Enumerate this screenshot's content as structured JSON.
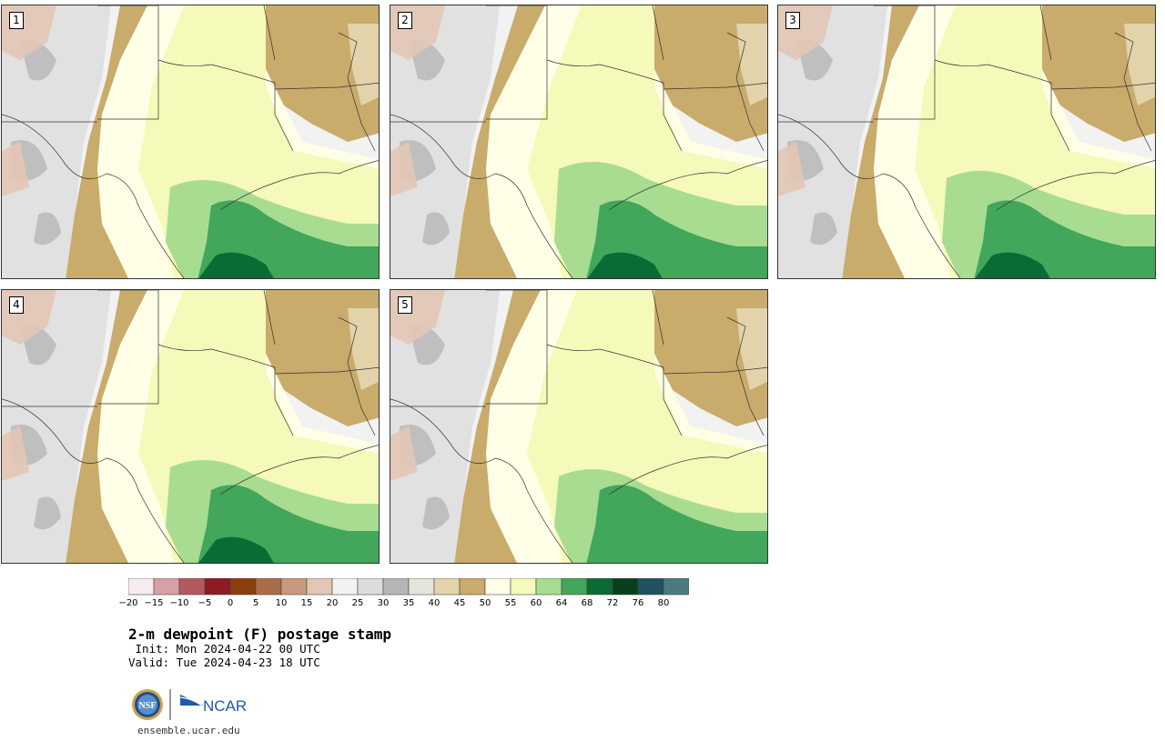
{
  "stamps": [
    {
      "label": "1"
    },
    {
      "label": "2"
    },
    {
      "label": "3"
    },
    {
      "label": "4"
    },
    {
      "label": "5"
    }
  ],
  "colorbar": {
    "colors": [
      "#f6ecef",
      "#d5a1a6",
      "#b35a5f",
      "#8e1a24",
      "#8b3e0e",
      "#a96d49",
      "#c79a7e",
      "#e3c6b5",
      "#f2f2f2",
      "#dcdcdc",
      "#b6b6b6",
      "#e5e4dc",
      "#e2d3aa",
      "#c9ab6b",
      "#fffee6",
      "#f5f9b9",
      "#a8dc91",
      "#42a65b",
      "#0a6b35",
      "#08401f",
      "#1f5362",
      "#4c7a80"
    ],
    "ticks": [
      "−20",
      "−15",
      "−10",
      "−5",
      "0",
      "5",
      "10",
      "15",
      "20",
      "25",
      "30",
      "35",
      "40",
      "45",
      "50",
      "55",
      "60",
      "64",
      "68",
      "72",
      "76",
      "80"
    ]
  },
  "title": "2-m dewpoint (F) postage stamp",
  "init_line": " Init: Mon 2024-04-22 00 UTC",
  "valid_line": "Valid: Tue 2024-04-23 18 UTC",
  "logo": {
    "nsf_text": "NSF",
    "ncar_text": "NCAR"
  },
  "url": "ensemble.ucar.edu"
}
